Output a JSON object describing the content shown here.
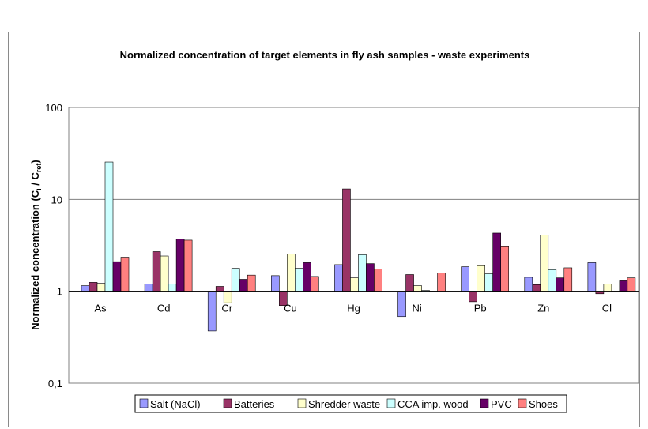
{
  "chart_data": {
    "type": "bar",
    "title": "Normalized concentration of target elements in fly ash samples - waste experiments",
    "ylabel": {
      "prefix": "Normalized concentration (C",
      "sub1": "i",
      "mid": " / C",
      "sub2": "ref",
      "suffix": ")"
    },
    "yscale": "log",
    "ylim": [
      0.1,
      100
    ],
    "yticks": [
      "0,1",
      "1",
      "10",
      "100"
    ],
    "grid": "horizontal",
    "legend_position": "bottom",
    "categories": [
      "As",
      "Cd",
      "Cr",
      "Cu",
      "Hg",
      "Ni",
      "Pb",
      "Zn",
      "Cl"
    ],
    "series": [
      {
        "name": "Salt (NaCl)",
        "color": "#9999ff",
        "values": [
          1.15,
          1.2,
          0.37,
          1.48,
          1.95,
          0.53,
          1.85,
          1.42,
          2.05
        ]
      },
      {
        "name": "Batteries",
        "color": "#993366",
        "values": [
          1.25,
          2.7,
          1.13,
          0.7,
          13.0,
          1.52,
          0.77,
          1.18,
          0.94
        ]
      },
      {
        "name": "Shredder waste",
        "color": "#ffffcc",
        "values": [
          1.22,
          2.42,
          0.75,
          2.55,
          1.4,
          1.15,
          1.9,
          4.1,
          1.2
        ]
      },
      {
        "name": "CCA imp. wood",
        "color": "#ccffff",
        "values": [
          25.5,
          1.2,
          1.78,
          1.78,
          2.5,
          1.02,
          1.55,
          1.72,
          1.0
        ]
      },
      {
        "name": "PVC",
        "color": "#660066",
        "values": [
          2.1,
          3.7,
          1.35,
          2.05,
          2.0,
          1.0,
          4.3,
          1.4,
          1.3
        ]
      },
      {
        "name": "Shoes",
        "color": "#ff8080",
        "values": [
          2.35,
          3.6,
          1.5,
          1.45,
          1.75,
          1.58,
          3.05,
          1.8,
          1.4
        ]
      }
    ]
  }
}
